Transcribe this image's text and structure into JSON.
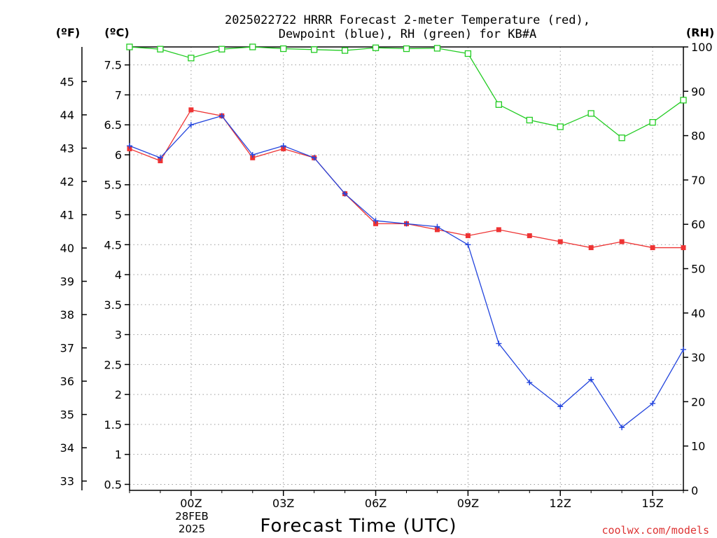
{
  "chart_data": {
    "type": "line",
    "title_line1": "2025022722 HRRR Forecast 2-meter Temperature (red),",
    "title_line2": "Dewpoint (blue), RH (green) for KB#A",
    "left_outer_unit": "(ºF)",
    "left_inner_unit": "(ºC)",
    "right_unit": "(RH)",
    "xlabel": "Forecast Time (UTC)",
    "date_line1": "28FEB",
    "date_line2": "2025",
    "credit": "coolwx.com/models",
    "x_ticks": [
      {
        "hour": 0,
        "label": "00Z"
      },
      {
        "hour": 3,
        "label": "03Z"
      },
      {
        "hour": 6,
        "label": "06Z"
      },
      {
        "hour": 9,
        "label": "09Z"
      },
      {
        "hour": 12,
        "label": "12Z"
      },
      {
        "hour": 15,
        "label": "15Z"
      }
    ],
    "xlim": [
      -2,
      16
    ],
    "c_ticks": [
      "0.5",
      "1",
      "1.5",
      "2",
      "2.5",
      "3",
      "3.5",
      "4",
      "4.5",
      "5",
      "5.5",
      "6",
      "6.5",
      "7",
      "7.5"
    ],
    "c_lim": [
      0.4,
      7.8
    ],
    "f_ticks": [
      "33",
      "34",
      "35",
      "36",
      "37",
      "38",
      "39",
      "40",
      "41",
      "42",
      "43",
      "44",
      "45"
    ],
    "rh_ticks": [
      "0",
      "10",
      "20",
      "30",
      "40",
      "50",
      "60",
      "70",
      "80",
      "90",
      "100"
    ],
    "rh_lim": [
      0,
      100
    ],
    "grid": true,
    "colors": {
      "temperature": "#ee3333",
      "dewpoint": "#2244dd",
      "rh": "#22cc22",
      "grid": "#9a9a9a",
      "credit": "#dd3333"
    },
    "x_hours": [
      -2,
      -1,
      0,
      1,
      2,
      3,
      4,
      5,
      6,
      7,
      8,
      9,
      10,
      11,
      12,
      13,
      14,
      15,
      16
    ],
    "series": [
      {
        "name": "Temperature",
        "unit": "C",
        "axis": "left",
        "values": [
          6.1,
          5.9,
          6.75,
          6.65,
          5.95,
          6.1,
          5.95,
          5.35,
          4.85,
          4.85,
          4.75,
          4.65,
          4.75,
          4.65,
          4.55,
          4.45,
          4.55,
          4.45,
          4.45
        ]
      },
      {
        "name": "Dewpoint",
        "unit": "C",
        "axis": "left",
        "values": [
          6.15,
          5.95,
          6.5,
          6.65,
          6.0,
          6.15,
          5.95,
          5.35,
          4.9,
          4.85,
          4.8,
          4.5,
          2.85,
          2.2,
          1.8,
          2.25,
          1.45,
          1.85,
          2.75
        ]
      },
      {
        "name": "RH",
        "unit": "%",
        "axis": "right",
        "values": [
          100,
          99.5,
          97.5,
          99.5,
          100,
          99.6,
          99.4,
          99.2,
          99.8,
          99.6,
          99.7,
          98.5,
          87,
          83.5,
          82,
          85,
          79.5,
          83,
          88
        ]
      }
    ]
  }
}
